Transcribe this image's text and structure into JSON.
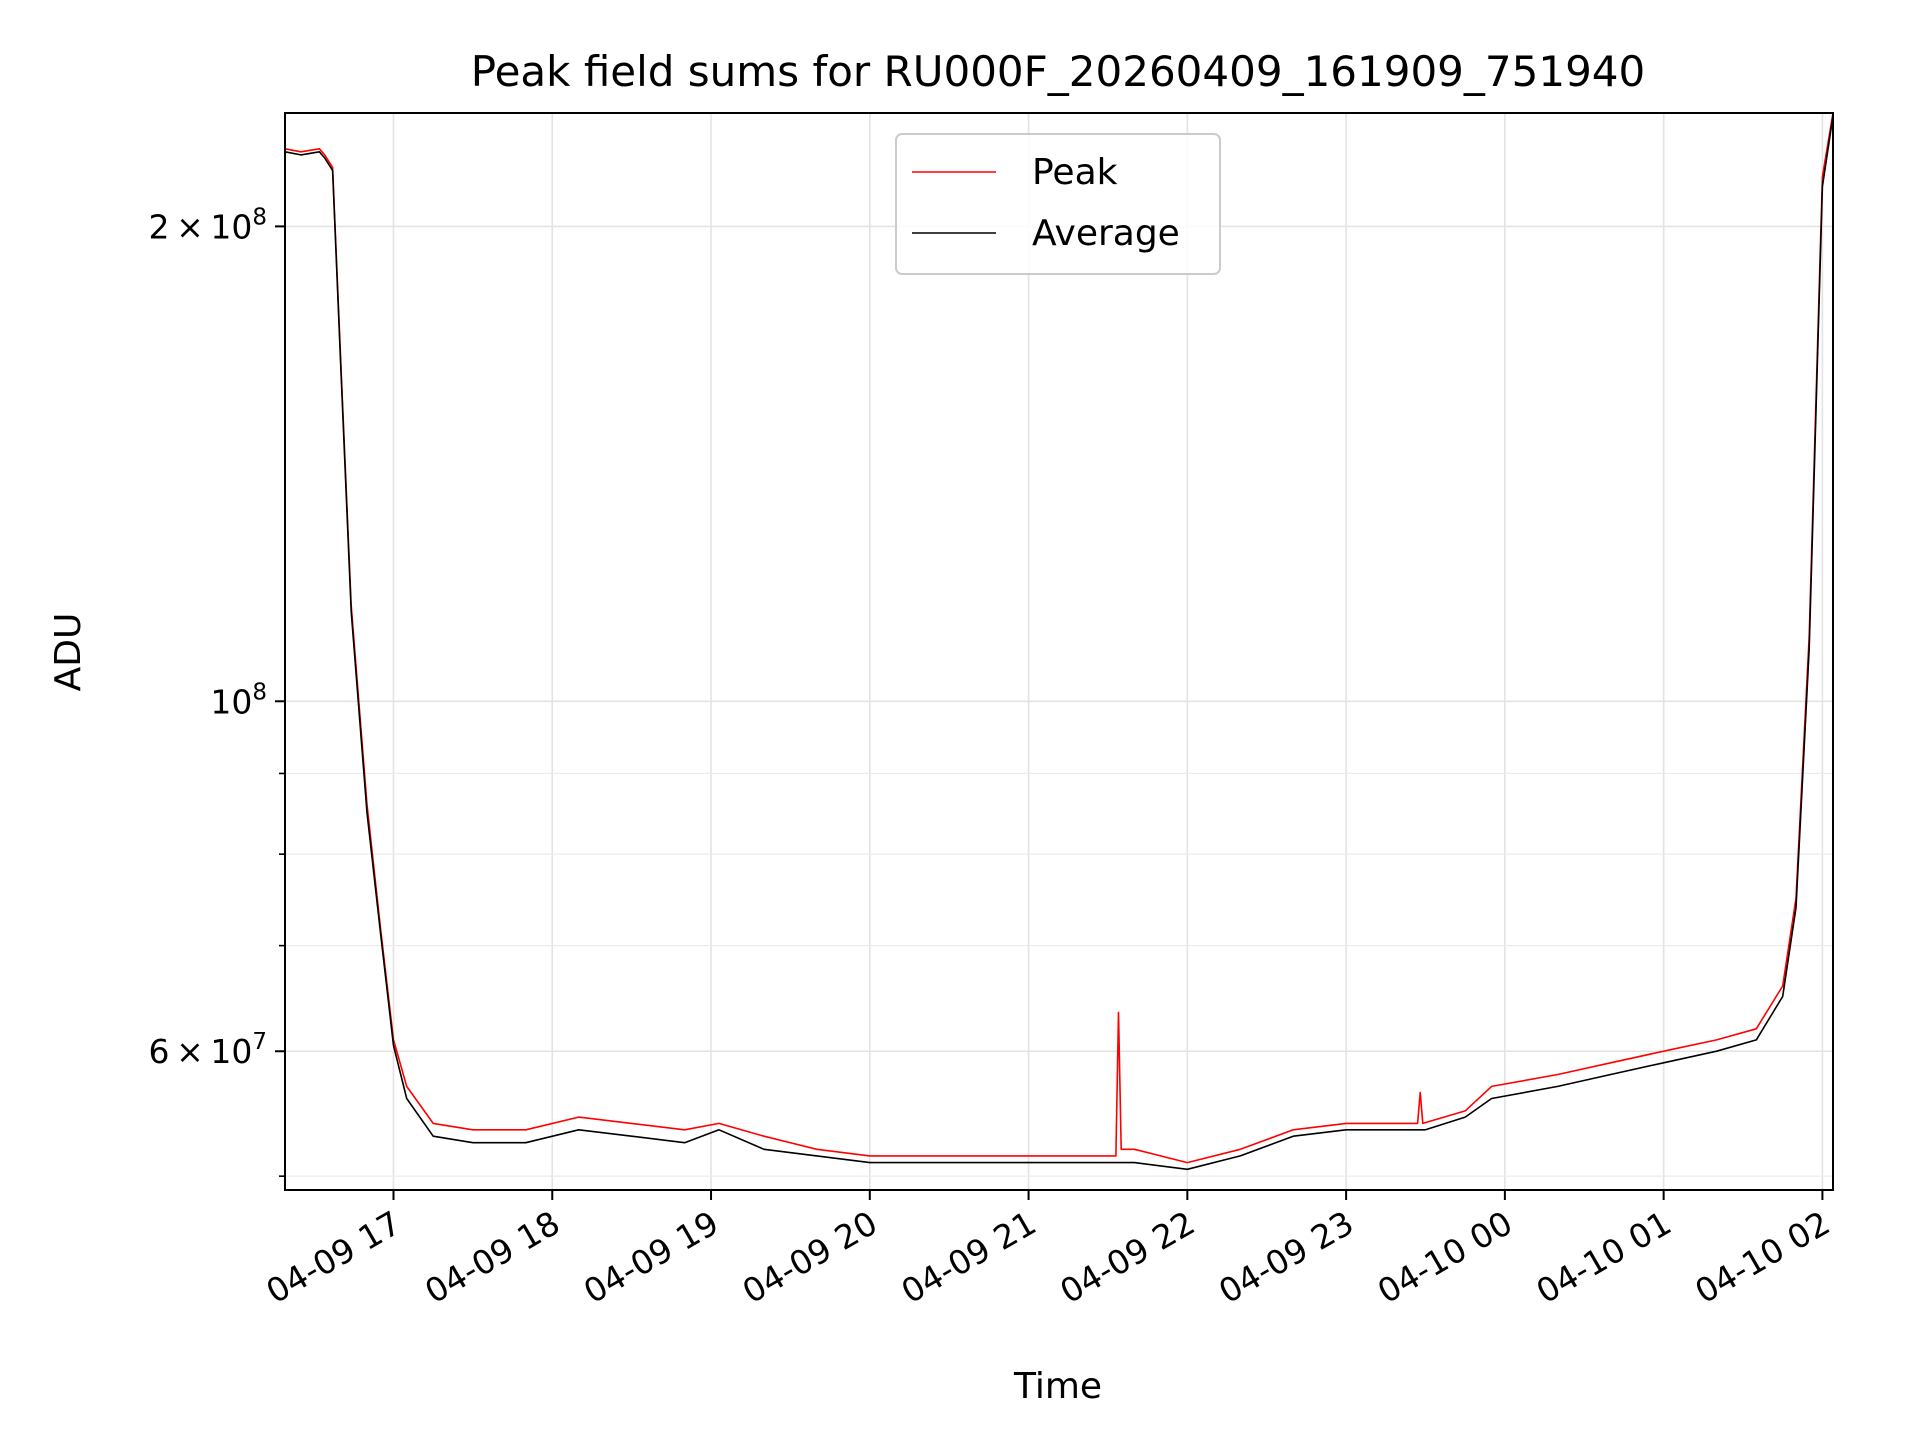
{
  "chart_data": {
    "type": "line",
    "title": "Peak field sums for RU000F_20260409_161909_751940",
    "xlabel": "Time",
    "ylabel": "ADU",
    "y_scale": "log",
    "ylim": [
      49000000,
      236000000
    ],
    "xlim": [
      "2026-04-09 16:19",
      "2026-04-10 02:04"
    ],
    "grid": true,
    "legend_position": "top-center",
    "x_ticks": [
      "04-09 17",
      "04-09 18",
      "04-09 19",
      "04-09 20",
      "04-09 21",
      "04-09 22",
      "04-09 23",
      "04-10 00",
      "04-10 01",
      "04-10 02"
    ],
    "x_tick_times": [
      "2026-04-09 17:00",
      "2026-04-09 18:00",
      "2026-04-09 19:00",
      "2026-04-09 20:00",
      "2026-04-09 21:00",
      "2026-04-09 22:00",
      "2026-04-09 23:00",
      "2026-04-10 00:00",
      "2026-04-10 01:00",
      "2026-04-10 02:00"
    ],
    "y_ticks": [
      {
        "value": 200000000,
        "mant": "2",
        "sep": "×",
        "base": "10",
        "exp": "8"
      },
      {
        "value": 100000000,
        "mant": "",
        "sep": "",
        "base": "10",
        "exp": "8"
      },
      {
        "value": 60000000,
        "mant": "6",
        "sep": "×",
        "base": "10",
        "exp": "7"
      }
    ],
    "y_minor_ticks": [
      50000000,
      70000000,
      80000000,
      90000000
    ],
    "series": [
      {
        "name": "Peak",
        "color": "#ff0000",
        "x": [
          "2026-04-09 16:19",
          "2026-04-09 16:25",
          "2026-04-09 16:32",
          "2026-04-09 16:34",
          "2026-04-09 16:37",
          "2026-04-09 16:40",
          "2026-04-09 16:44",
          "2026-04-09 16:50",
          "2026-04-09 16:55",
          "2026-04-09 17:00",
          "2026-04-09 17:05",
          "2026-04-09 17:15",
          "2026-04-09 17:30",
          "2026-04-09 17:50",
          "2026-04-09 18:10",
          "2026-04-09 18:30",
          "2026-04-09 18:50",
          "2026-04-09 19:03",
          "2026-04-09 19:20",
          "2026-04-09 19:40",
          "2026-04-09 20:00",
          "2026-04-09 20:30",
          "2026-04-09 21:00",
          "2026-04-09 21:33",
          "2026-04-09 21:34",
          "2026-04-09 21:35",
          "2026-04-09 21:40",
          "2026-04-09 22:00",
          "2026-04-09 22:20",
          "2026-04-09 22:40",
          "2026-04-09 23:00",
          "2026-04-09 23:27",
          "2026-04-09 23:28",
          "2026-04-09 23:29",
          "2026-04-09 23:45",
          "2026-04-09 23:55",
          "2026-04-10 00:20",
          "2026-04-10 00:40",
          "2026-04-10 01:00",
          "2026-04-10 01:20",
          "2026-04-10 01:35",
          "2026-04-10 01:45",
          "2026-04-10 01:50",
          "2026-04-10 01:55",
          "2026-04-10 02:00",
          "2026-04-10 02:04"
        ],
        "values": [
          224000000,
          223000000,
          224000000,
          222000000,
          218000000,
          165000000,
          115000000,
          86000000,
          72000000,
          61000000,
          57000000,
          54000000,
          53500000,
          53500000,
          54500000,
          54000000,
          53500000,
          54000000,
          53000000,
          52000000,
          51500000,
          51500000,
          51500000,
          51500000,
          63500000,
          52000000,
          52000000,
          51000000,
          52000000,
          53500000,
          54000000,
          54000000,
          56500000,
          54000000,
          55000000,
          57000000,
          58000000,
          59000000,
          60000000,
          61000000,
          62000000,
          66000000,
          75000000,
          110000000,
          215000000,
          236000000
        ]
      },
      {
        "name": "Average",
        "color": "#000000",
        "x": [
          "2026-04-09 16:19",
          "2026-04-09 16:25",
          "2026-04-09 16:32",
          "2026-04-09 16:34",
          "2026-04-09 16:37",
          "2026-04-09 16:40",
          "2026-04-09 16:44",
          "2026-04-09 16:50",
          "2026-04-09 16:55",
          "2026-04-09 17:00",
          "2026-04-09 17:05",
          "2026-04-09 17:15",
          "2026-04-09 17:30",
          "2026-04-09 17:50",
          "2026-04-09 18:10",
          "2026-04-09 18:30",
          "2026-04-09 18:50",
          "2026-04-09 19:03",
          "2026-04-09 19:20",
          "2026-04-09 19:40",
          "2026-04-09 20:00",
          "2026-04-09 20:30",
          "2026-04-09 21:00",
          "2026-04-09 21:30",
          "2026-04-09 21:40",
          "2026-04-09 22:00",
          "2026-04-09 22:20",
          "2026-04-09 22:40",
          "2026-04-09 23:00",
          "2026-04-09 23:30",
          "2026-04-09 23:45",
          "2026-04-09 23:55",
          "2026-04-10 00:20",
          "2026-04-10 00:40",
          "2026-04-10 01:00",
          "2026-04-10 01:20",
          "2026-04-10 01:35",
          "2026-04-10 01:45",
          "2026-04-10 01:50",
          "2026-04-10 01:55",
          "2026-04-10 02:00",
          "2026-04-10 02:04"
        ],
        "values": [
          223000000,
          222000000,
          223000000,
          221000000,
          217000000,
          164000000,
          114000000,
          85000000,
          71500000,
          60500000,
          56000000,
          53000000,
          52500000,
          52500000,
          53500000,
          53000000,
          52500000,
          53500000,
          52000000,
          51500000,
          51000000,
          51000000,
          51000000,
          51000000,
          51000000,
          50500000,
          51500000,
          53000000,
          53500000,
          53500000,
          54500000,
          56000000,
          57000000,
          58000000,
          59000000,
          60000000,
          61000000,
          65000000,
          74000000,
          108000000,
          212000000,
          235000000
        ]
      }
    ]
  }
}
